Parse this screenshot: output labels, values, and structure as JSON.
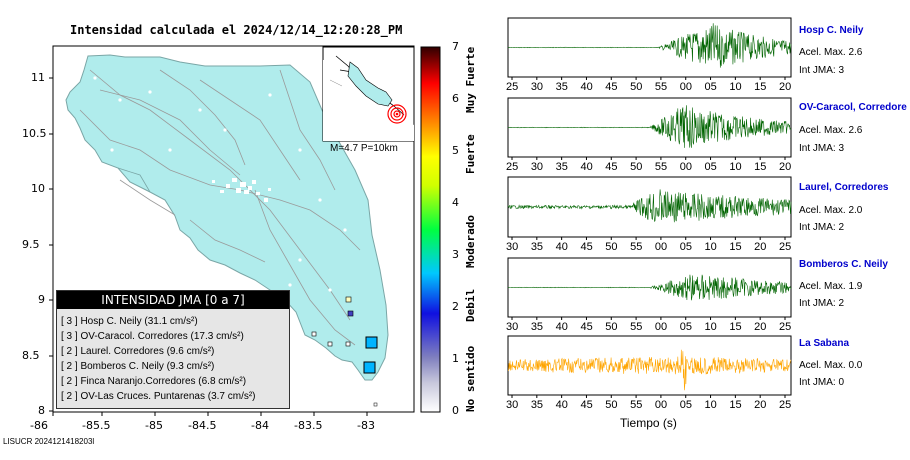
{
  "map": {
    "title": "Intensidad calculada el 2024/12/14_12:20:28_PM",
    "footer_id": "LISUCR 2024121418203l",
    "x_ticks": [
      "-86",
      "-85.5",
      "-85",
      "-84.5",
      "-84",
      "-83.5",
      "-83"
    ],
    "y_ticks": [
      "11",
      "10.5",
      "10",
      "9.5",
      "9",
      "8.5",
      "8"
    ],
    "inset_label": "M=4.7 P=10km",
    "colorbar": {
      "ticks": [
        "0",
        "1",
        "2",
        "3",
        "4",
        "5",
        "6",
        "7"
      ],
      "labels": [
        "No sentido",
        "Debil",
        "Moderado",
        "Fuerte",
        "Muy Fuerte"
      ],
      "colors": [
        "#ffffff",
        "#7f7fbf",
        "#0000ff",
        "#00c8ff",
        "#00ff00",
        "#ffff00",
        "#ff8000",
        "#ff0000",
        "#300000"
      ]
    },
    "legend": {
      "header": "INTENSIDAD JMA [0 a 7]",
      "rows": [
        "[ 3 ]  Hosp C. Neily (31.1 cm/s²)",
        "[ 3 ]  OV-Caracol. Corredores (17.3 cm/s²)",
        "[ 2 ]  Laurel. Corredores (9.6 cm/s²)",
        "[ 2 ]  Bomberos C. Neily (9.3 cm/s²)",
        "[ 2 ]  Finca Naranjo.Corredores (6.8 cm/s²)",
        "[ 2 ]  OV-Las Cruces. Puntarenas (3.7 cm/s²)"
      ]
    },
    "colors": {
      "land": "#b0ecec",
      "station_high": "#00b4ff",
      "station_low": "#4040c0"
    }
  },
  "chart_data": {
    "type": "line",
    "xlabel": "Tiempo (s)",
    "traces": [
      {
        "name": "Hosp C. Neily",
        "accel": "Acel. Max. 2.6",
        "jma": "Int JMA: 3",
        "color": "#006400",
        "x_ticks": [
          "25",
          "30",
          "35",
          "40",
          "45",
          "50",
          "55",
          "00",
          "05",
          "10",
          "15",
          "20"
        ]
      },
      {
        "name": "OV-Caracol, Corredore",
        "accel": "Acel. Max. 2.6",
        "jma": "Int JMA: 3",
        "color": "#006400",
        "x_ticks": [
          "25",
          "30",
          "35",
          "40",
          "45",
          "50",
          "55",
          "00",
          "05",
          "10",
          "15",
          "20"
        ]
      },
      {
        "name": "Laurel, Corredores",
        "accel": "Acel. Max. 2.0",
        "jma": "Int JMA: 2",
        "color": "#006400",
        "x_ticks": [
          "30",
          "35",
          "40",
          "45",
          "50",
          "55",
          "00",
          "05",
          "10",
          "15",
          "20",
          "25"
        ]
      },
      {
        "name": "Bomberos C. Neily",
        "accel": "Acel. Max. 1.9",
        "jma": "Int JMA: 2",
        "color": "#006400",
        "x_ticks": [
          "30",
          "35",
          "40",
          "45",
          "50",
          "55",
          "00",
          "05",
          "10",
          "15",
          "20",
          "25"
        ]
      },
      {
        "name": "La Sabana",
        "accel": "Acel. Max. 0.0",
        "jma": "Int JMA: 0",
        "color": "#ffa500",
        "x_ticks": [
          "30",
          "35",
          "40",
          "45",
          "50",
          "55",
          "00",
          "05",
          "10",
          "15",
          "20",
          "25"
        ]
      }
    ]
  }
}
